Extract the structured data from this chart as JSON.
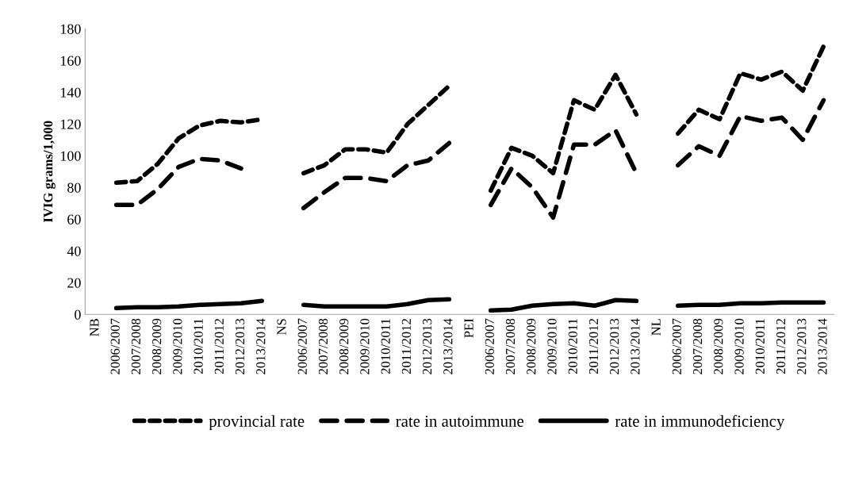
{
  "chart_data": {
    "type": "line",
    "ylabel": "IVIG grams/1,000",
    "categories": [
      "NB",
      "2006/2007",
      "2007/2008",
      "2008/2009",
      "2009/2010",
      "2010/2011",
      "2011/2012",
      "2012/2013",
      "2013/2014",
      "NS",
      "2006/2007",
      "2007/2008",
      "2008/2009",
      "2009/2010",
      "2010/2011",
      "2011/2012",
      "2012/2013",
      "2013/2014",
      "PEI",
      "2006/2007",
      "2007/2008",
      "2008/2009",
      "2009/2010",
      "2010/2011",
      "2011/2012",
      "2012/2013",
      "2013/2014",
      "NL",
      "2006/2007",
      "2007/2008",
      "2008/2009",
      "2009/2010",
      "2010/2011",
      "2011/2012",
      "2012/2013",
      "2013/2014"
    ],
    "series": [
      {
        "name": "provincial rate",
        "color": "#000000",
        "line_style": "dashed",
        "values": [
          null,
          83,
          84,
          95,
          111,
          119,
          122,
          121,
          123,
          null,
          89,
          94,
          104,
          104,
          102,
          120,
          132,
          144,
          null,
          78,
          105,
          100,
          89,
          135,
          129,
          151,
          126,
          null,
          114,
          129,
          123,
          152,
          148,
          153,
          141,
          169
        ]
      },
      {
        "name": "rate in autoimmune",
        "color": "#000000",
        "line_style": "dashed",
        "values": [
          null,
          69,
          69,
          79,
          93,
          98,
          97,
          92,
          null,
          null,
          67,
          77,
          86,
          86,
          84,
          94,
          97,
          108,
          null,
          69,
          92,
          80,
          61,
          107,
          107,
          116,
          89,
          null,
          94,
          106,
          100,
          125,
          122,
          124,
          110,
          135
        ]
      },
      {
        "name": "rate in immunodeficiency",
        "color": "#000000",
        "line_style": "solid",
        "values": [
          null,
          4,
          4.5,
          4.5,
          5,
          6,
          6.5,
          7,
          8.5,
          null,
          6,
          5,
          5,
          5,
          5,
          6.5,
          9,
          9.5,
          null,
          2.5,
          3,
          5.5,
          6.5,
          7,
          5.5,
          9,
          8.5,
          null,
          5.5,
          6,
          6,
          7,
          7,
          7.5,
          7.5,
          7.5
        ]
      }
    ],
    "ylim": [
      0,
      180
    ],
    "yticks": [
      0,
      20,
      40,
      60,
      80,
      100,
      120,
      140,
      160,
      180
    ],
    "grid": false,
    "legend": "bottom"
  }
}
